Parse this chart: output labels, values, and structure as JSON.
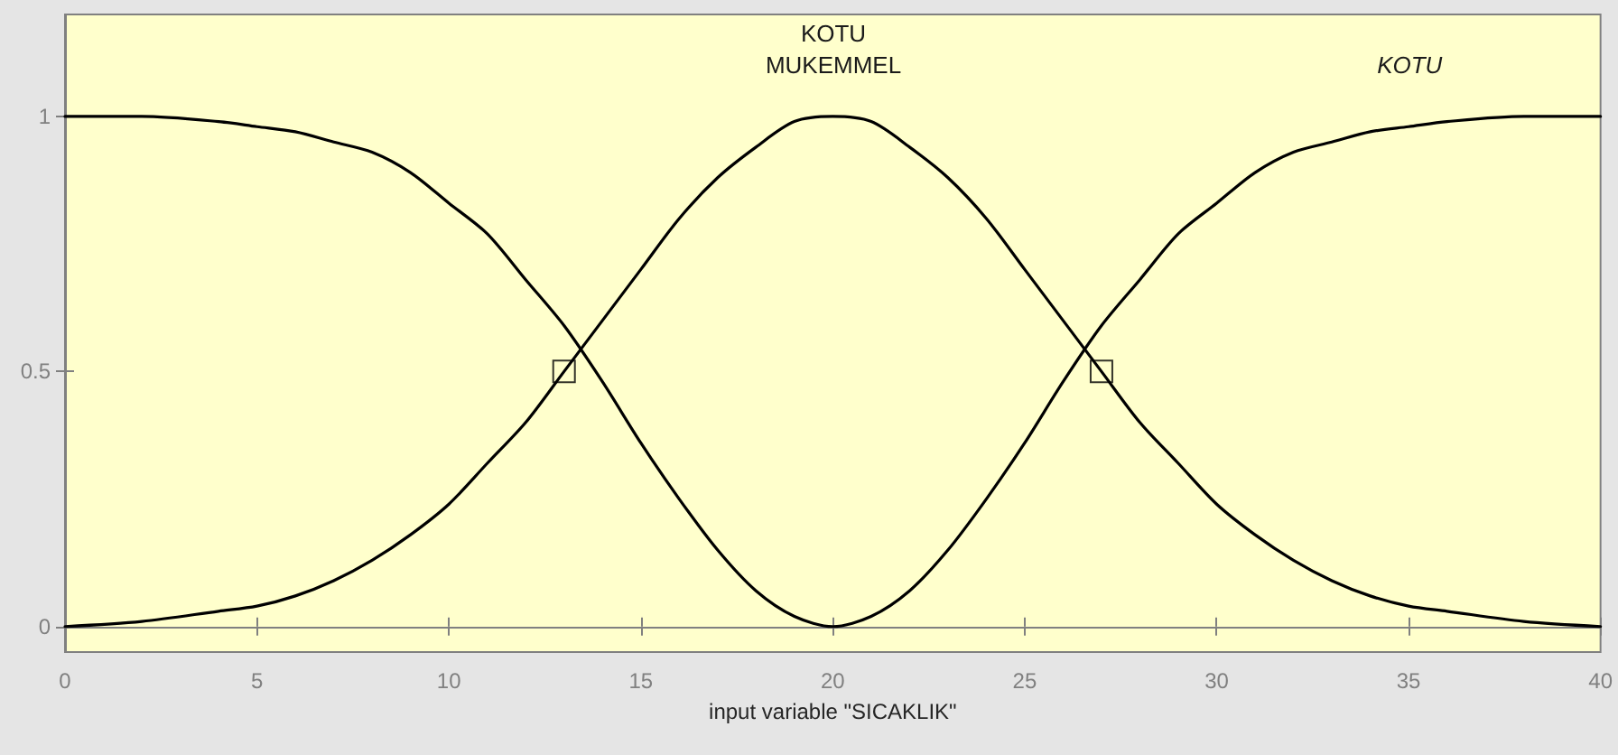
{
  "chart_data": {
    "type": "line",
    "xlabel": "input variable \"SICAKLIK\"",
    "xlim": [
      0,
      40
    ],
    "xticks": [
      0,
      5,
      10,
      15,
      20,
      25,
      30,
      35,
      40
    ],
    "ylim": [
      -0.05,
      1.2
    ],
    "yticks": [
      0,
      0.5,
      1
    ],
    "marker": "none",
    "line_style": "solid",
    "series": [
      {
        "color": "#000000",
        "x": [
          0,
          2,
          4,
          5,
          6,
          7,
          8,
          9,
          10,
          11,
          12,
          13,
          14,
          15,
          16,
          17,
          18,
          19,
          20,
          21,
          22,
          23,
          24,
          25,
          26,
          27,
          28,
          29,
          30,
          31,
          32,
          33,
          34,
          35,
          36,
          38,
          40
        ],
        "values": [
          1.0,
          1.0,
          0.99,
          0.98,
          0.97,
          0.95,
          0.93,
          0.89,
          0.83,
          0.77,
          0.68,
          0.59,
          0.48,
          0.36,
          0.25,
          0.15,
          0.07,
          0.02,
          0.0,
          0.02,
          0.07,
          0.15,
          0.25,
          0.36,
          0.48,
          0.59,
          0.68,
          0.77,
          0.83,
          0.89,
          0.93,
          0.95,
          0.97,
          0.98,
          0.99,
          1.0,
          1.0
        ]
      },
      {
        "color": "#000000",
        "x": [
          0,
          2,
          4,
          5,
          6,
          7,
          8,
          9,
          10,
          11,
          12,
          13,
          14,
          15,
          16,
          17,
          18,
          19,
          20,
          21,
          22,
          23,
          24,
          25,
          26,
          27,
          28,
          29,
          30,
          31,
          32,
          33,
          34,
          35,
          36,
          38,
          40
        ],
        "values": [
          0.0,
          0.01,
          0.03,
          0.04,
          0.06,
          0.09,
          0.13,
          0.18,
          0.24,
          0.32,
          0.4,
          0.5,
          0.6,
          0.7,
          0.8,
          0.88,
          0.94,
          0.99,
          1.0,
          0.99,
          0.94,
          0.88,
          0.8,
          0.7,
          0.6,
          0.5,
          0.4,
          0.32,
          0.24,
          0.18,
          0.13,
          0.09,
          0.06,
          0.04,
          0.03,
          0.01,
          0.0
        ]
      },
      {
        "type": "scatter",
        "marker": "square",
        "color": "#000000",
        "x": [
          13,
          27
        ],
        "values": [
          0.5,
          0.5
        ]
      }
    ],
    "annotations": [
      "MUKEMMEL",
      "KOTU",
      "KOTU"
    ]
  }
}
